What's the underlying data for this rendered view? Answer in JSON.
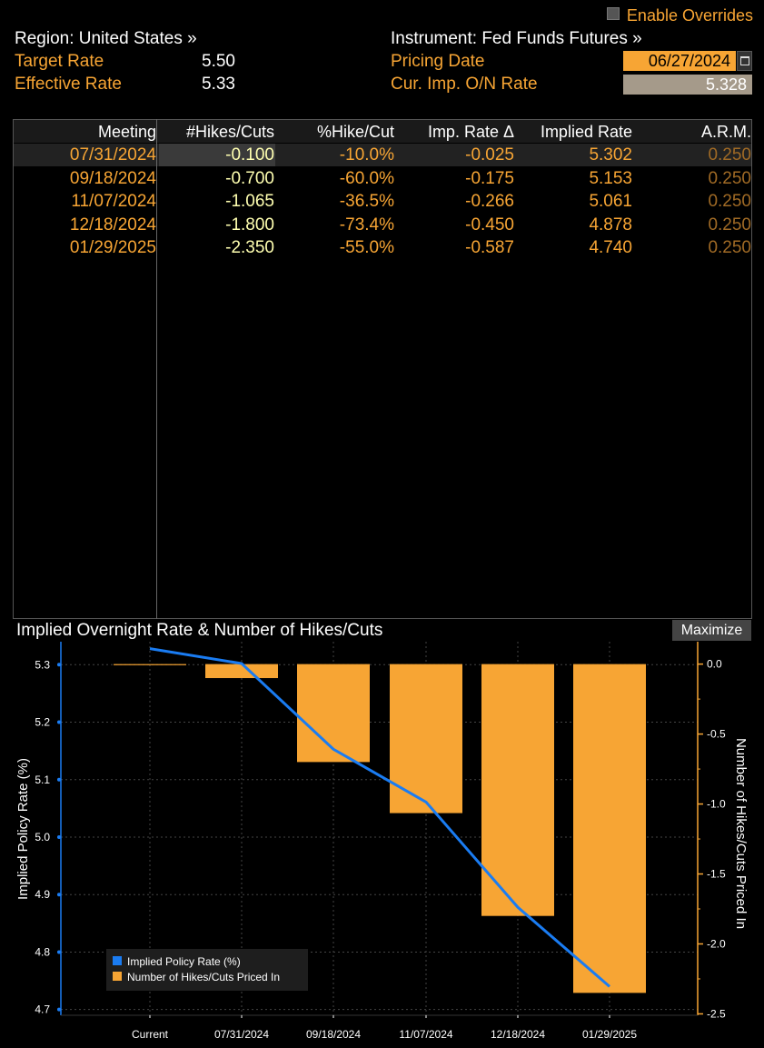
{
  "header": {
    "enable_overrides": "Enable Overrides",
    "region": "Region: United States »",
    "instrument": "Instrument: Fed Funds Futures »",
    "target_rate_label": "Target Rate",
    "target_rate_value": "5.50",
    "effective_rate_label": "Effective Rate",
    "effective_rate_value": "5.33",
    "pricing_date_label": "Pricing Date",
    "pricing_date_value": "06/27/2024",
    "imp_rate_label": "Cur. Imp. O/N Rate",
    "imp_rate_value": "5.328"
  },
  "table": {
    "columns": [
      "Meeting",
      "#Hikes/Cuts",
      "%Hike/Cut",
      "Imp. Rate Δ",
      "Implied Rate",
      "A.R.M."
    ],
    "rows": [
      [
        "07/31/2024",
        "-0.100",
        "-10.0%",
        "-0.025",
        "5.302",
        "0.250"
      ],
      [
        "09/18/2024",
        "-0.700",
        "-60.0%",
        "-0.175",
        "5.153",
        "0.250"
      ],
      [
        "11/07/2024",
        "-1.065",
        "-36.5%",
        "-0.266",
        "5.061",
        "0.250"
      ],
      [
        "12/18/2024",
        "-1.800",
        "-73.4%",
        "-0.450",
        "4.878",
        "0.250"
      ],
      [
        "01/29/2025",
        "-2.350",
        "-55.0%",
        "-0.587",
        "4.740",
        "0.250"
      ]
    ]
  },
  "chart_panel": {
    "title": "Implied Overnight Rate & Number of Hikes/Cuts",
    "maximize": "Maximize"
  },
  "chart_data": {
    "type": "bar",
    "title": "Implied Overnight Rate & Number of Hikes/Cuts",
    "categories": [
      "Current",
      "07/31/2024",
      "09/18/2024",
      "11/07/2024",
      "12/18/2024",
      "01/29/2025"
    ],
    "series": [
      {
        "name": "Implied Policy Rate (%)",
        "type": "line",
        "axis": "left",
        "color": "#1a7cf2",
        "values": [
          5.328,
          5.302,
          5.153,
          5.061,
          4.878,
          4.74
        ]
      },
      {
        "name": "Number of Hikes/Cuts Priced In",
        "type": "bar",
        "axis": "right",
        "color": "#f7a534",
        "values": [
          0.0,
          -0.1,
          -0.7,
          -1.065,
          -1.8,
          -2.35
        ]
      }
    ],
    "ylabel": "Implied Policy Rate (%)",
    "ylabel_right": "Number of Hikes/Cuts Priced In",
    "ylim": [
      4.69,
      5.34
    ],
    "yticks": [
      "5.3",
      "5.2",
      "5.1",
      "5.0",
      "4.9",
      "4.8",
      "4.7"
    ],
    "ylim_right": [
      -2.51,
      0.16
    ],
    "yticks_right": [
      "0.0",
      "-0.5",
      "-1.0",
      "-1.5",
      "-2.0",
      "-2.5"
    ],
    "grid": true,
    "legend": "bottom-left"
  }
}
